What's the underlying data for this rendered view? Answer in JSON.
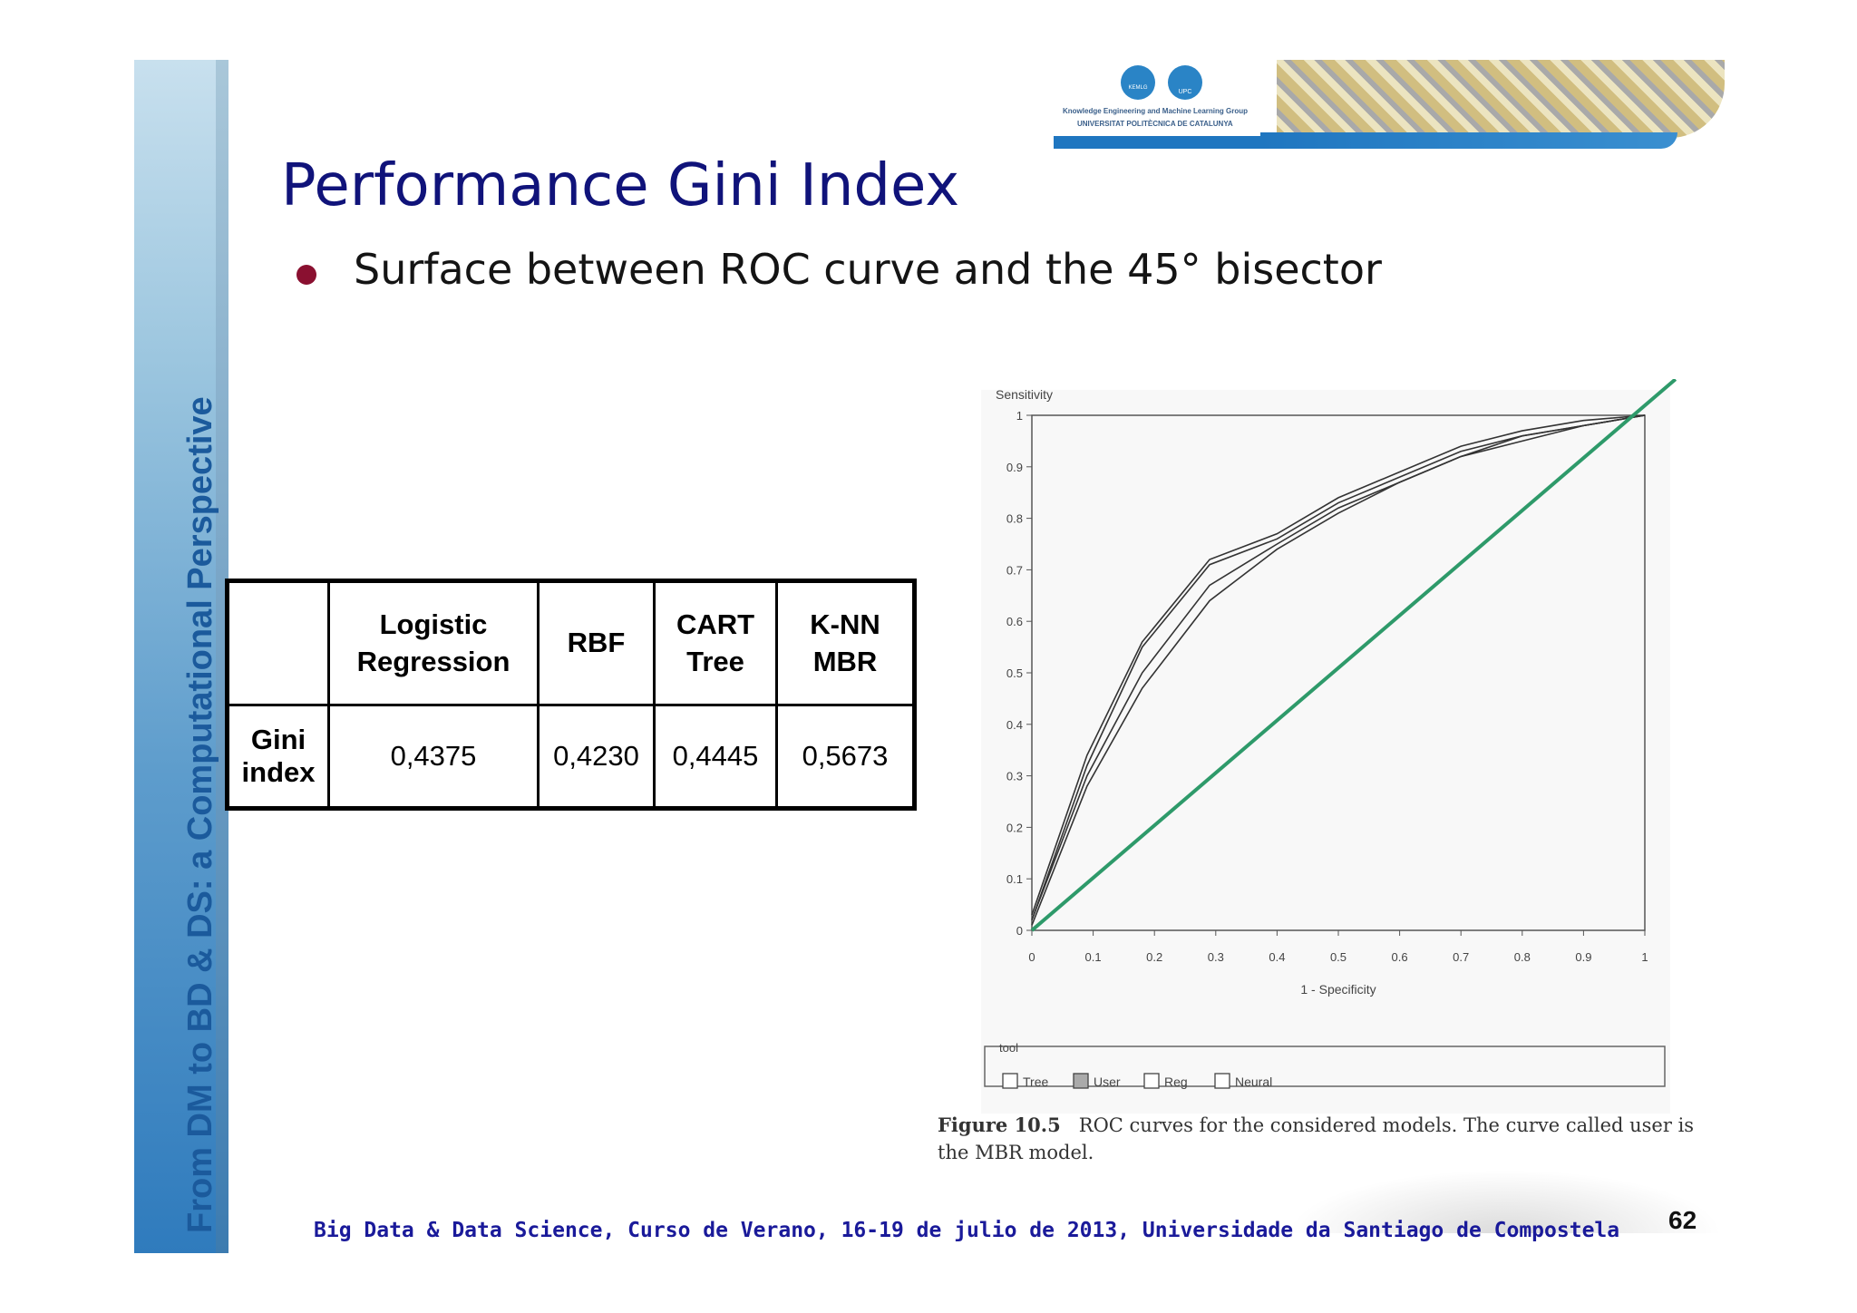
{
  "sidebar": {
    "text": "From DM to BD & DS: a Computational Perspective"
  },
  "banner": {
    "line1": "Knowledge Engineering and Machine Learning Group",
    "line2": "UNIVERSITAT POLITÈCNICA DE CATALUNYA",
    "logo1_text": "KEMLG",
    "logo2_text": "UPC"
  },
  "slide": {
    "title": "Performance Gini Index",
    "bullet": "Surface between ROC curve and the  45° bisector"
  },
  "table": {
    "headers": [
      "",
      "Logistic Regression",
      "RBF",
      "CART Tree",
      "K-NN MBR"
    ],
    "row_label": "Gini index",
    "values": [
      "0,4375",
      "0,4230",
      "0,4445",
      "0,5673"
    ]
  },
  "chart_data": {
    "type": "line",
    "title": "",
    "ylabel": "Sensitivity",
    "xlabel": "1 - Specificity",
    "xlim": [
      0,
      1
    ],
    "ylim": [
      0,
      1
    ],
    "x_ticks": [
      "0",
      "0.1",
      "0.2",
      "0.3",
      "0.4",
      "0.5",
      "0.6",
      "0.7",
      "0.8",
      "0.9",
      "1"
    ],
    "y_ticks": [
      "0",
      "0.1",
      "0.2",
      "0.3",
      "0.4",
      "0.5",
      "0.6",
      "0.7",
      "0.8",
      "0.9",
      "1"
    ],
    "legend_title": "tool",
    "legend_position": "bottom",
    "series": [
      {
        "name": "Tree",
        "x": [
          0,
          0.09,
          0.18,
          0.29,
          0.4,
          0.5,
          0.6,
          0.7,
          0.8,
          0.9,
          1
        ],
        "y": [
          0.02,
          0.32,
          0.55,
          0.71,
          0.76,
          0.83,
          0.88,
          0.93,
          0.96,
          0.98,
          1.0
        ]
      },
      {
        "name": "User",
        "x": [
          0,
          0.09,
          0.18,
          0.29,
          0.4,
          0.5,
          0.6,
          0.7,
          0.8,
          0.9,
          1
        ],
        "y": [
          0.03,
          0.34,
          0.56,
          0.72,
          0.77,
          0.84,
          0.89,
          0.94,
          0.97,
          0.99,
          1.0
        ]
      },
      {
        "name": "Reg",
        "x": [
          0,
          0.09,
          0.18,
          0.29,
          0.4,
          0.5,
          0.6,
          0.7,
          0.8,
          0.9,
          1
        ],
        "y": [
          0.01,
          0.28,
          0.47,
          0.64,
          0.74,
          0.81,
          0.87,
          0.92,
          0.95,
          0.98,
          1.0
        ]
      },
      {
        "name": "Neural",
        "x": [
          0,
          0.09,
          0.18,
          0.29,
          0.4,
          0.5,
          0.6,
          0.7,
          0.8,
          0.9,
          1
        ],
        "y": [
          0.02,
          0.3,
          0.5,
          0.67,
          0.75,
          0.82,
          0.87,
          0.92,
          0.96,
          0.98,
          1.0
        ]
      }
    ],
    "bisector": {
      "x": [
        0,
        1.05
      ],
      "y": [
        0,
        1.07
      ],
      "color": "#2e9a6a"
    },
    "caption_label": "Figure 10.5",
    "caption_text": "ROC curves for the considered models. The curve called user is the MBR model."
  },
  "footer": {
    "text": "Big Data & Data Science, Curso de Verano, 16-19 de julio de 2013, Universidade da Santiago de Compostela",
    "page": "62"
  }
}
